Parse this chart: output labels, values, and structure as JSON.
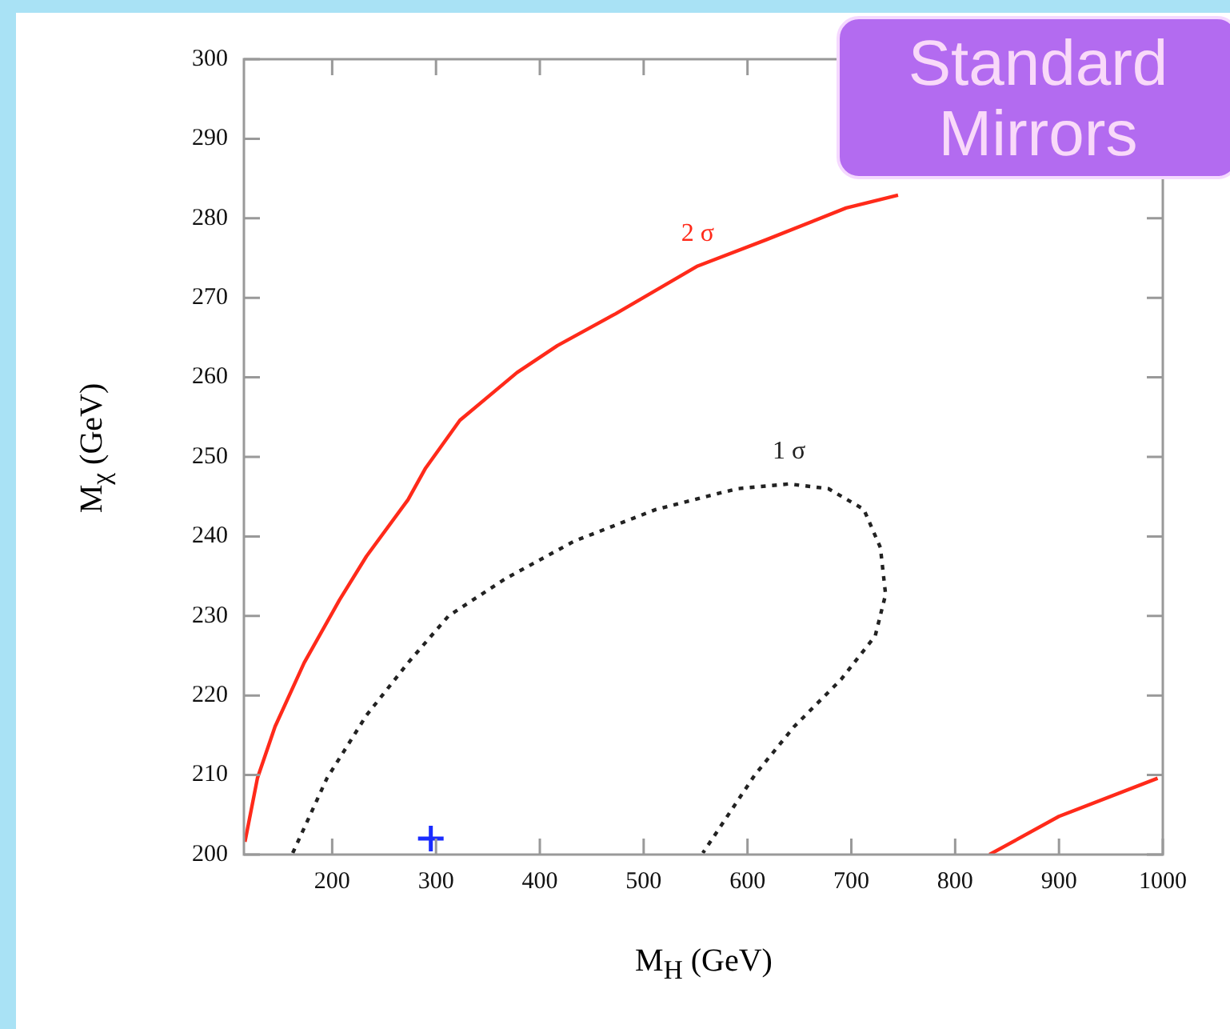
{
  "chart_data": {
    "type": "line",
    "xlabel": "M$_{H}$  (GeV)",
    "ylabel": "M$_{χ}$  (GeV)",
    "xlim": [
      115,
      1000
    ],
    "xticks": [
      200,
      300,
      400,
      500,
      600,
      700,
      800,
      900,
      1000
    ],
    "ylim": [
      200,
      300
    ],
    "yticks": [
      200,
      210,
      220,
      230,
      240,
      250,
      260,
      270,
      280,
      290,
      300
    ],
    "grid": false,
    "legend": false,
    "series": [
      {
        "name": "2 σ",
        "color": "#ff2a1a",
        "line_style": "solid",
        "marker": "none",
        "x": [
          116,
          128,
          145,
          173,
          207,
          233,
          273,
          290,
          323,
          378,
          417,
          473,
          552,
          618,
          695,
          745,
          null,
          833,
          900,
          995
        ],
        "values": [
          201.6,
          209.6,
          216.1,
          224.1,
          232,
          237.5,
          244.6,
          248.6,
          254.6,
          260.6,
          264,
          268,
          274,
          277.3,
          281.3,
          282.9,
          null,
          200,
          204.8,
          209.6
        ]
      },
      {
        "name": "1 σ",
        "color": "#222222",
        "line_style": "dotted",
        "marker": "none",
        "x": [
          162,
          195,
          233,
          273,
          312,
          367,
          433,
          512,
          590,
          640,
          678,
          712,
          728,
          733,
          723,
          690,
          645,
          607,
          557
        ],
        "values": [
          200.2,
          209.6,
          217.5,
          224.1,
          230,
          234.7,
          239.4,
          243.4,
          246,
          246.6,
          246,
          243.4,
          238.6,
          232.7,
          227.5,
          222,
          216.1,
          210,
          200.2
        ]
      },
      {
        "type": "scatter",
        "color": "#1a2cff",
        "marker": "cross",
        "x": [
          295
        ],
        "values": [
          202
        ]
      }
    ],
    "annotations": [
      "Standard Mirrors"
    ]
  }
}
